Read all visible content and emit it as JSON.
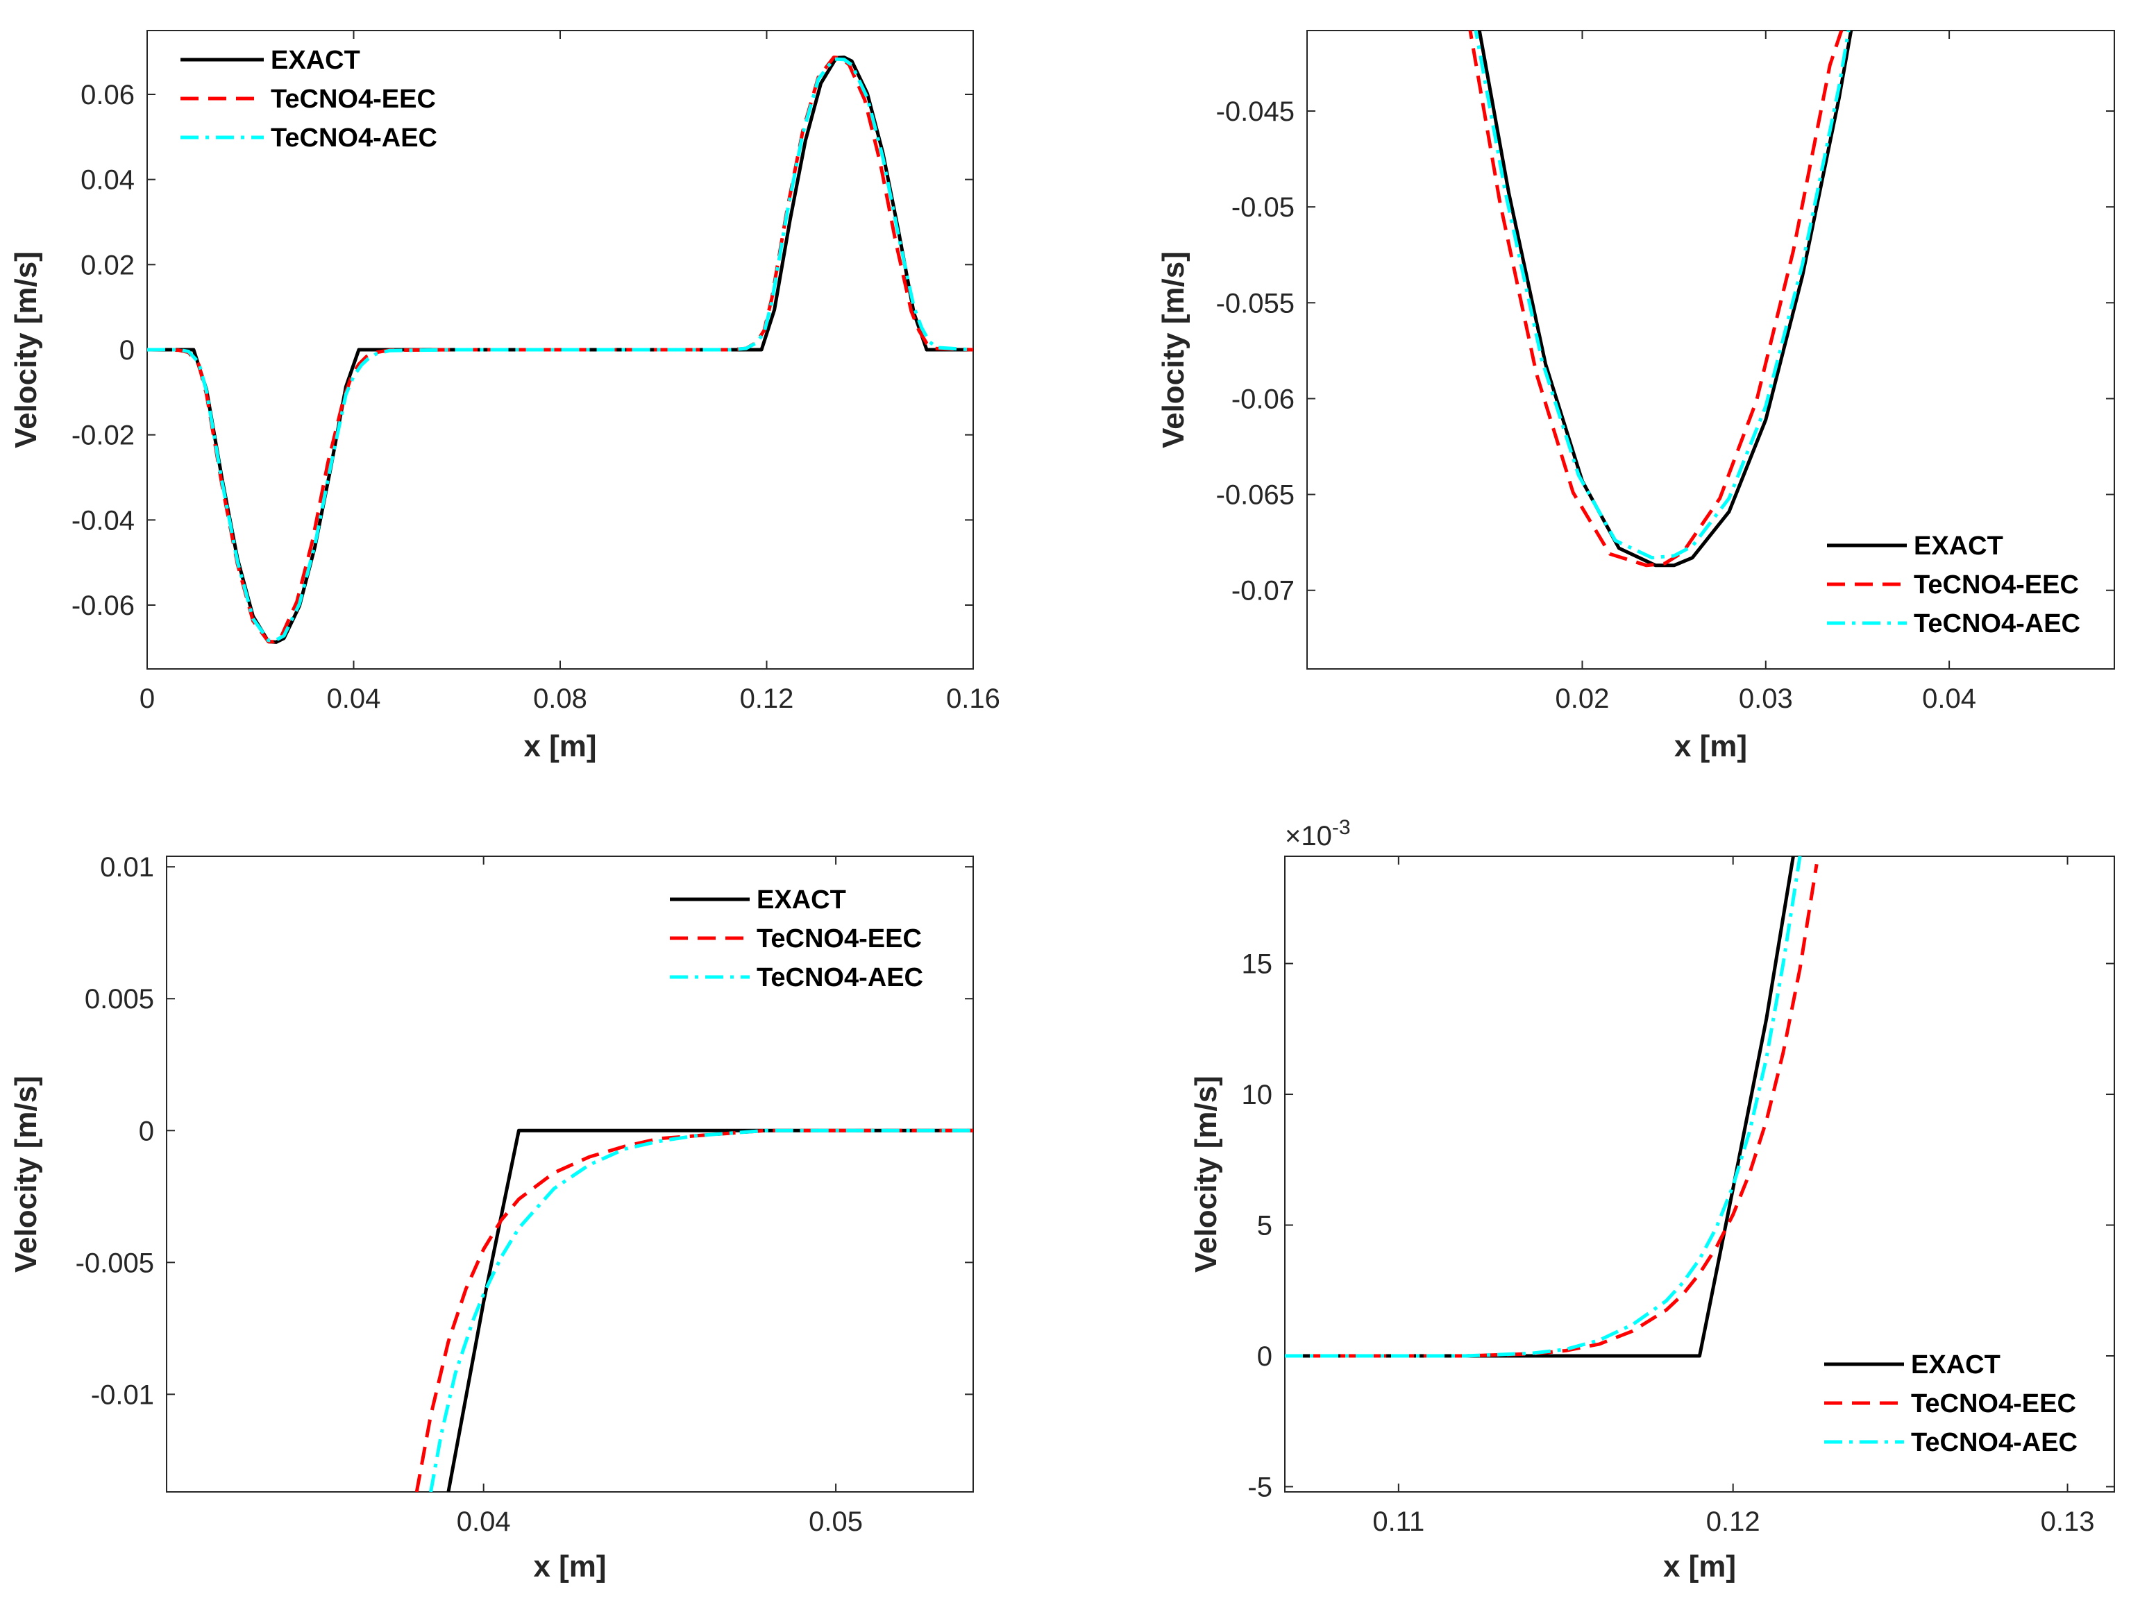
{
  "colors": {
    "exact": "#000000",
    "eec": "#ff0000",
    "aec": "#00ffff",
    "axes": "#262626"
  },
  "chart_data": [
    {
      "type": "line",
      "panel": "top-left",
      "title": "",
      "xlabel": "x [m]",
      "ylabel": "Velocity [m/s]",
      "xlim": [
        0,
        0.16
      ],
      "ylim": [
        -0.075,
        0.075
      ],
      "xticks": [
        0,
        0.04,
        0.08,
        0.12,
        0.16
      ],
      "xtick_labels": [
        "0",
        "0.04",
        "0.08",
        "0.12",
        "0.16"
      ],
      "yticks": [
        -0.06,
        -0.04,
        -0.02,
        0,
        0.02,
        0.04,
        0.06
      ],
      "ytick_labels": [
        "-0.06",
        "-0.04",
        "-0.02",
        "0",
        "0.02",
        "0.04",
        "0.06"
      ],
      "legend_position": "top-left",
      "legend": [
        "EXACT",
        "TeCNO4-EEC",
        "TeCNO4-AEC"
      ],
      "series": [
        {
          "name": "EXACT",
          "style": "solid",
          "x": [
            0,
            0.009,
            0.0115,
            0.0145,
            0.0175,
            0.0205,
            0.0235,
            0.025,
            0.0265,
            0.0295,
            0.0325,
            0.0355,
            0.0385,
            0.041,
            0.06,
            0.1,
            0.119,
            0.1215,
            0.1245,
            0.1275,
            0.1305,
            0.1335,
            0.135,
            0.1365,
            0.1395,
            0.1425,
            0.1455,
            0.1485,
            0.151,
            0.16
          ],
          "y": [
            0,
            0,
            -0.0094,
            -0.0303,
            -0.0491,
            -0.0626,
            -0.0686,
            -0.0687,
            -0.0678,
            -0.0602,
            -0.0463,
            -0.0281,
            -0.0087,
            0,
            0,
            0,
            0,
            0.0094,
            0.0303,
            0.0491,
            0.0626,
            0.0686,
            0.0687,
            0.0678,
            0.0602,
            0.0463,
            0.0281,
            0.0087,
            0,
            0
          ]
        },
        {
          "name": "TeCNO4-EEC",
          "style": "dashed",
          "x": [
            0,
            0.006,
            0.008,
            0.01,
            0.0115,
            0.0145,
            0.0175,
            0.0205,
            0.0235,
            0.0245,
            0.026,
            0.029,
            0.032,
            0.035,
            0.038,
            0.0395,
            0.041,
            0.0425,
            0.044,
            0.047,
            0.06,
            0.1,
            0.113,
            0.116,
            0.118,
            0.1195,
            0.121,
            0.124,
            0.127,
            0.13,
            0.133,
            0.1345,
            0.136,
            0.139,
            0.142,
            0.145,
            0.148,
            0.1495,
            0.151,
            0.1525,
            0.16
          ],
          "y": [
            0,
            -0.0001,
            -0.0006,
            -0.0035,
            -0.0105,
            -0.0318,
            -0.0504,
            -0.0637,
            -0.0686,
            -0.0686,
            -0.0673,
            -0.0592,
            -0.045,
            -0.0266,
            -0.0118,
            -0.0065,
            -0.0034,
            -0.0016,
            -0.0007,
            -0.0001,
            0,
            0,
            0,
            0.0003,
            0.0017,
            0.0045,
            0.0121,
            0.0332,
            0.0514,
            0.064,
            0.0687,
            0.0686,
            0.0669,
            0.0587,
            0.0439,
            0.0253,
            0.0091,
            0.0045,
            0.0015,
            0.0003,
            0
          ]
        },
        {
          "name": "TeCNO4-AEC",
          "style": "dashdot",
          "x": [
            0,
            0.006,
            0.008,
            0.01,
            0.0115,
            0.0145,
            0.0175,
            0.0205,
            0.0235,
            0.025,
            0.0265,
            0.0295,
            0.0325,
            0.0355,
            0.0385,
            0.04,
            0.0415,
            0.043,
            0.0445,
            0.047,
            0.06,
            0.1,
            0.113,
            0.116,
            0.118,
            0.1195,
            0.121,
            0.124,
            0.127,
            0.13,
            0.133,
            0.135,
            0.1365,
            0.1395,
            0.1425,
            0.1455,
            0.1485,
            0.15,
            0.1515,
            0.153,
            0.16
          ],
          "y": [
            0,
            0,
            -0.0004,
            -0.003,
            -0.0098,
            -0.031,
            -0.0498,
            -0.0632,
            -0.0683,
            -0.0682,
            -0.0672,
            -0.0597,
            -0.0458,
            -0.0276,
            -0.0105,
            -0.0062,
            -0.0036,
            -0.0019,
            -0.0009,
            -0.0002,
            0,
            0,
            0,
            0.0003,
            0.0016,
            0.004,
            0.0113,
            0.0325,
            0.0508,
            0.0636,
            0.0683,
            0.0682,
            0.0669,
            0.0592,
            0.0452,
            0.027,
            0.0101,
            0.0052,
            0.0019,
            0.0005,
            0
          ]
        }
      ]
    },
    {
      "type": "line",
      "panel": "top-right",
      "title": "",
      "xlabel": "x [m]",
      "ylabel": "Velocity [m/s]",
      "xlim": [
        0.005,
        0.049
      ],
      "ylim": [
        -0.0741,
        -0.0408
      ],
      "xticks": [
        0.02,
        0.03,
        0.04
      ],
      "xtick_labels": [
        "0.02",
        "0.03",
        "0.04"
      ],
      "yticks": [
        -0.07,
        -0.065,
        -0.06,
        -0.055,
        -0.05,
        -0.045
      ],
      "ytick_labels": [
        "-0.07",
        "-0.065",
        "-0.06",
        "-0.055",
        "-0.05",
        "-0.045"
      ],
      "legend_position": "bottom-right",
      "legend": [
        "EXACT",
        "TeCNO4-EEC",
        "TeCNO4-AEC"
      ],
      "series": [
        {
          "name": "EXACT",
          "style": "solid",
          "x": [
            0.0143,
            0.016,
            0.018,
            0.02,
            0.022,
            0.024,
            0.025,
            0.026,
            0.028,
            0.03,
            0.032,
            0.034,
            0.0348
          ],
          "y": [
            -0.0403,
            -0.0493,
            -0.0582,
            -0.0643,
            -0.0678,
            -0.0687,
            -0.0687,
            -0.0683,
            -0.0659,
            -0.0611,
            -0.0536,
            -0.0443,
            -0.04
          ]
        },
        {
          "name": "TeCNO4-EEC",
          "style": "dashed",
          "x": [
            0.0138,
            0.0155,
            0.0175,
            0.0195,
            0.0215,
            0.0235,
            0.0245,
            0.0255,
            0.0275,
            0.0295,
            0.0315,
            0.0335,
            0.0343
          ],
          "y": [
            -0.0403,
            -0.0497,
            -0.0587,
            -0.0649,
            -0.0681,
            -0.0687,
            -0.0686,
            -0.068,
            -0.0652,
            -0.0601,
            -0.0523,
            -0.0426,
            -0.0403
          ]
        },
        {
          "name": "TeCNO4-AEC",
          "style": "dashdot",
          "x": [
            0.0141,
            0.0158,
            0.0178,
            0.0198,
            0.0218,
            0.0238,
            0.025,
            0.026,
            0.028,
            0.03,
            0.032,
            0.034,
            0.0346
          ],
          "y": [
            -0.0403,
            -0.0492,
            -0.058,
            -0.064,
            -0.0674,
            -0.0683,
            -0.0682,
            -0.0677,
            -0.0652,
            -0.0604,
            -0.053,
            -0.0437,
            -0.0403
          ]
        }
      ]
    },
    {
      "type": "line",
      "panel": "bottom-left",
      "title": "",
      "xlabel": "x [m]",
      "ylabel": "Velocity [m/s]",
      "xlim": [
        0.031,
        0.0539
      ],
      "ylim": [
        -0.0137,
        0.0104
      ],
      "xticks": [
        0.04,
        0.05
      ],
      "xtick_labels": [
        "0.04",
        "0.05"
      ],
      "yticks": [
        -0.01,
        -0.005,
        0,
        0.005,
        0.01
      ],
      "ytick_labels": [
        "-0.01",
        "-0.005",
        "0",
        "0.005",
        "0.01"
      ],
      "legend_position": "top-right",
      "legend": [
        "EXACT",
        "TeCNO4-EEC",
        "TeCNO4-AEC"
      ],
      "series": [
        {
          "name": "EXACT",
          "style": "solid",
          "x": [
            0.039,
            0.04,
            0.041,
            0.0539
          ],
          "y": [
            -0.0137,
            -0.0065,
            0,
            0
          ]
        },
        {
          "name": "TeCNO4-EEC",
          "style": "dashed",
          "x": [
            0.0381,
            0.0385,
            0.039,
            0.0395,
            0.04,
            0.0405,
            0.041,
            0.042,
            0.043,
            0.044,
            0.045,
            0.046,
            0.047,
            0.048,
            0.0539
          ],
          "y": [
            -0.0137,
            -0.0108,
            -0.008,
            -0.006,
            -0.0045,
            -0.0034,
            -0.0026,
            -0.0016,
            -0.001,
            -0.0006,
            -0.0003,
            -0.0002,
            -0.0001,
            0,
            0
          ]
        },
        {
          "name": "TeCNO4-AEC",
          "style": "dashdot",
          "x": [
            0.0385,
            0.0388,
            0.0392,
            0.0397,
            0.04,
            0.0405,
            0.041,
            0.042,
            0.043,
            0.044,
            0.045,
            0.046,
            0.047,
            0.048,
            0.0539
          ],
          "y": [
            -0.0137,
            -0.0115,
            -0.0092,
            -0.0072,
            -0.0062,
            -0.0048,
            -0.0037,
            -0.0022,
            -0.0013,
            -0.0007,
            -0.0004,
            -0.0002,
            -0.0001,
            0,
            0
          ]
        }
      ]
    },
    {
      "type": "line",
      "panel": "bottom-right",
      "title": "",
      "xlabel": "x [m]",
      "ylabel": "Velocity [m/s]",
      "y_exponent": "×10",
      "y_exponent_power": "-3",
      "xlim": [
        0.1066,
        0.1314
      ],
      "ylim": [
        -5.2,
        19.1
      ],
      "xticks": [
        0.11,
        0.12,
        0.13
      ],
      "xtick_labels": [
        "0.11",
        "0.12",
        "0.13"
      ],
      "yticks": [
        -5,
        0,
        5,
        10,
        15
      ],
      "ytick_labels": [
        "-5",
        "0",
        "5",
        "10",
        "15"
      ],
      "legend_position": "bottom-right",
      "legend": [
        "EXACT",
        "TeCNO4-EEC",
        "TeCNO4-AEC"
      ],
      "series": [
        {
          "name": "EXACT",
          "style": "solid",
          "x": [
            0.1066,
            0.119,
            0.12,
            0.121,
            0.1218
          ],
          "y": [
            0,
            0,
            6.4,
            12.9,
            19.1
          ]
        },
        {
          "name": "TeCNO4-EEC",
          "style": "dashed",
          "x": [
            0.1066,
            0.112,
            0.114,
            0.115,
            0.116,
            0.117,
            0.118,
            0.1185,
            0.119,
            0.1195,
            0.12,
            0.1205,
            0.121,
            0.1215,
            0.122,
            0.1225
          ],
          "y": [
            0,
            0,
            0.08,
            0.2,
            0.45,
            0.95,
            1.75,
            2.35,
            3.15,
            4.15,
            5.4,
            7.0,
            9.0,
            11.6,
            14.8,
            18.8
          ]
        },
        {
          "name": "TeCNO4-AEC",
          "style": "dashdot",
          "x": [
            0.1066,
            0.112,
            0.114,
            0.115,
            0.116,
            0.117,
            0.118,
            0.1185,
            0.119,
            0.1195,
            0.12,
            0.1205,
            0.121,
            0.1215,
            0.122
          ],
          "y": [
            0,
            0,
            0.1,
            0.25,
            0.6,
            1.2,
            2.1,
            2.8,
            3.7,
            4.9,
            6.5,
            8.6,
            11.4,
            15.0,
            19.1
          ]
        }
      ]
    }
  ]
}
